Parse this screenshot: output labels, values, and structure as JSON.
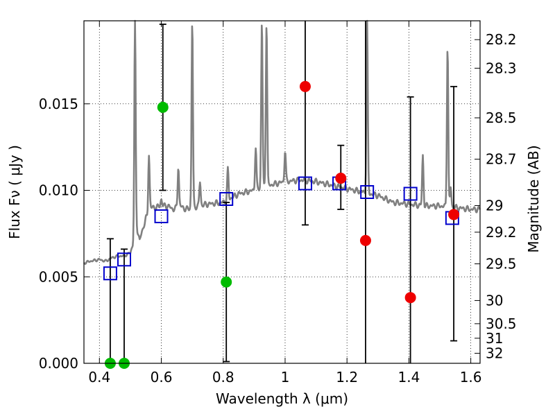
{
  "chart_data": {
    "type": "scatter",
    "title": "",
    "xlabel": "Wavelength  λ (μm)",
    "ylabel": "Flux  Fν  ( μJy )",
    "y2label": "Magnitude (AB)",
    "xlim": [
      0.35,
      1.63
    ],
    "ylim": [
      0.0,
      0.0198
    ],
    "grid": "dotted",
    "x_ticks": [
      0.4,
      0.6,
      0.8,
      1.0,
      1.2,
      1.4,
      1.6
    ],
    "x_tick_labels": [
      "0.4",
      "0.6",
      "0.8",
      "1",
      "1.2",
      "1.4",
      "1.6"
    ],
    "y_ticks": [
      0.0,
      0.005,
      0.01,
      0.015
    ],
    "y_tick_labels": [
      "0.000",
      "0.005",
      "0.010",
      "0.015"
    ],
    "y2_tick_labels": [
      "28.2",
      "28.3",
      "28.5",
      "28.7",
      "29",
      "29.2",
      "29.5",
      "30",
      "30.5",
      "31",
      "32"
    ],
    "y2_tick_flux": [
      0.01871,
      0.01706,
      0.01419,
      0.0118,
      0.00912,
      0.00758,
      0.00575,
      0.00363,
      0.00229,
      0.00145,
      0.00058
    ],
    "series": [
      {
        "name": "Model SED (gray curve)",
        "color": "#808080",
        "kind": "line",
        "x": [
          0.35,
          0.37,
          0.4,
          0.42,
          0.44,
          0.46,
          0.48,
          0.5,
          0.51,
          0.515,
          0.52,
          0.53,
          0.55,
          0.56,
          0.565,
          0.58,
          0.6,
          0.62,
          0.64,
          0.66,
          0.68,
          0.7,
          0.72,
          0.75,
          0.8,
          0.85,
          0.9,
          0.95,
          1.0,
          1.05,
          1.1,
          1.15,
          1.2,
          1.25,
          1.3,
          1.35,
          1.4,
          1.45,
          1.5,
          1.55,
          1.6,
          1.63
        ],
        "y": [
          0.0058,
          0.0059,
          0.006,
          0.0059,
          0.0061,
          0.0062,
          0.0062,
          0.0064,
          0.007,
          0.008,
          0.0079,
          0.0071,
          0.0084,
          0.0084,
          0.009,
          0.009,
          0.0091,
          0.0091,
          0.0089,
          0.0091,
          0.0089,
          0.009,
          0.0091,
          0.0092,
          0.0093,
          0.0098,
          0.01,
          0.0103,
          0.0105,
          0.0106,
          0.0105,
          0.0103,
          0.0101,
          0.0099,
          0.0097,
          0.0093,
          0.0092,
          0.0091,
          0.0091,
          0.009,
          0.0089,
          0.0089
        ],
        "emission_lines": [
          {
            "x": 0.515,
            "peak": 0.0198
          },
          {
            "x": 0.56,
            "peak": 0.0121
          },
          {
            "x": 0.6,
            "peak": 0.0095
          },
          {
            "x": 0.655,
            "peak": 0.0114
          },
          {
            "x": 0.7,
            "peak": 0.0198
          },
          {
            "x": 0.725,
            "peak": 0.0105
          },
          {
            "x": 0.815,
            "peak": 0.0112
          },
          {
            "x": 0.905,
            "peak": 0.0125
          },
          {
            "x": 0.925,
            "peak": 0.0198
          },
          {
            "x": 0.94,
            "peak": 0.0198
          },
          {
            "x": 1.0,
            "peak": 0.0123
          },
          {
            "x": 1.265,
            "peak": 0.0198
          },
          {
            "x": 1.445,
            "peak": 0.012
          },
          {
            "x": 1.525,
            "peak": 0.0184
          },
          {
            "x": 1.535,
            "peak": 0.0102
          }
        ]
      },
      {
        "name": "Model photometry",
        "color": "#0000cc",
        "kind": "open-square",
        "x": [
          0.435,
          0.48,
          0.6,
          0.81,
          1.065,
          1.175,
          1.265,
          1.405,
          1.54
        ],
        "y": [
          0.0052,
          0.006,
          0.0085,
          0.0095,
          0.0104,
          0.0104,
          0.0099,
          0.0098,
          0.0084
        ]
      },
      {
        "name": "Green points",
        "color": "#00bb00",
        "kind": "filled-circle",
        "x": [
          0.435,
          0.48,
          0.605,
          0.81
        ],
        "y": [
          0.0,
          0.0,
          0.0148,
          0.0047
        ]
      },
      {
        "name": "Red points",
        "color": "#ee0000",
        "kind": "filled-circle",
        "x": [
          1.065,
          1.18,
          1.26,
          1.405,
          1.545
        ],
        "y": [
          0.016,
          0.0107,
          0.0071,
          0.0038,
          0.0086
        ]
      },
      {
        "name": "Error bars",
        "color": "#000000",
        "kind": "errorbar",
        "x": [
          0.435,
          0.48,
          0.605,
          0.81,
          1.065,
          1.18,
          1.26,
          1.405,
          1.545
        ],
        "low": [
          0.0,
          0.0,
          0.01,
          0.0001,
          0.008,
          0.0089,
          0.0,
          0.0,
          0.0013
        ],
        "high": [
          0.0072,
          0.0066,
          0.0196,
          0.0093,
          0.0198,
          0.0126,
          0.0198,
          0.0154,
          0.016
        ]
      }
    ]
  }
}
